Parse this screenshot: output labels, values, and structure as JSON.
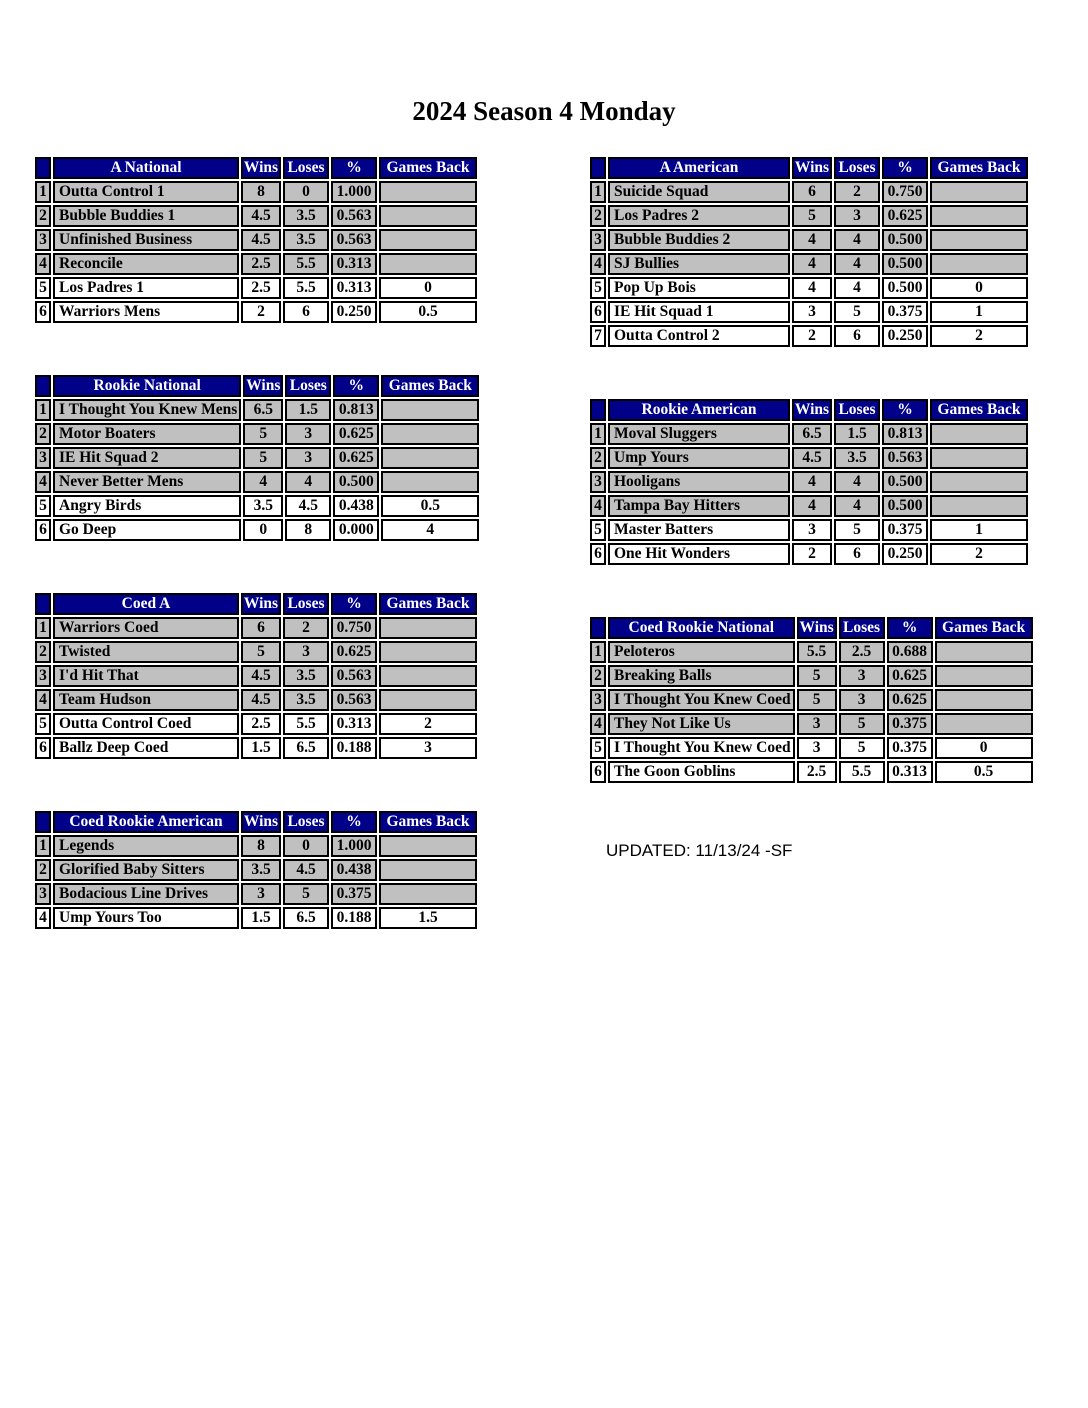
{
  "page": {
    "title": "2024 Season 4 Monday",
    "updated_note": "UPDATED: 11/13/24 -SF"
  },
  "colors": {
    "header_bg": "#000089",
    "header_text": "#ffffff",
    "shaded_row": "#c0c0c0",
    "unshaded_row": "#ffffff",
    "border": "#000000"
  },
  "stat_headers": [
    "Wins",
    "Loses",
    "%",
    "Games Back"
  ],
  "tables": [
    {
      "division": "A National",
      "column": "left",
      "rows": [
        {
          "rank": "1",
          "team": "Outta Control 1",
          "wins": "8",
          "loses": "0",
          "pct": "1.000",
          "games_back": "",
          "shaded": true
        },
        {
          "rank": "2",
          "team": "Bubble Buddies 1",
          "wins": "4.5",
          "loses": "3.5",
          "pct": "0.563",
          "games_back": "",
          "shaded": true
        },
        {
          "rank": "3",
          "team": "Unfinished Business",
          "wins": "4.5",
          "loses": "3.5",
          "pct": "0.563",
          "games_back": "",
          "shaded": true
        },
        {
          "rank": "4",
          "team": "Reconcile",
          "wins": "2.5",
          "loses": "5.5",
          "pct": "0.313",
          "games_back": "",
          "shaded": true
        },
        {
          "rank": "5",
          "team": "Los Padres 1",
          "wins": "2.5",
          "loses": "5.5",
          "pct": "0.313",
          "games_back": "0",
          "shaded": false
        },
        {
          "rank": "6",
          "team": "Warriors Mens",
          "wins": "2",
          "loses": "6",
          "pct": "0.250",
          "games_back": "0.5",
          "shaded": false
        }
      ]
    },
    {
      "division": "A American",
      "column": "right",
      "rows": [
        {
          "rank": "1",
          "team": "Suicide Squad",
          "wins": "6",
          "loses": "2",
          "pct": "0.750",
          "games_back": "",
          "shaded": true
        },
        {
          "rank": "2",
          "team": "Los Padres 2",
          "wins": "5",
          "loses": "3",
          "pct": "0.625",
          "games_back": "",
          "shaded": true
        },
        {
          "rank": "3",
          "team": "Bubble Buddies 2",
          "wins": "4",
          "loses": "4",
          "pct": "0.500",
          "games_back": "",
          "shaded": true
        },
        {
          "rank": "4",
          "team": "SJ Bullies",
          "wins": "4",
          "loses": "4",
          "pct": "0.500",
          "games_back": "",
          "shaded": true
        },
        {
          "rank": "5",
          "team": "Pop Up Bois",
          "wins": "4",
          "loses": "4",
          "pct": "0.500",
          "games_back": "0",
          "shaded": false
        },
        {
          "rank": "6",
          "team": "IE Hit Squad 1",
          "wins": "3",
          "loses": "5",
          "pct": "0.375",
          "games_back": "1",
          "shaded": false
        },
        {
          "rank": "7",
          "team": "Outta Control 2",
          "wins": "2",
          "loses": "6",
          "pct": "0.250",
          "games_back": "2",
          "shaded": false
        }
      ]
    },
    {
      "division": "Rookie National",
      "column": "left",
      "rows": [
        {
          "rank": "1",
          "team": "I Thought You Knew Mens",
          "wins": "6.5",
          "loses": "1.5",
          "pct": "0.813",
          "games_back": "",
          "shaded": true
        },
        {
          "rank": "2",
          "team": "Motor Boaters",
          "wins": "5",
          "loses": "3",
          "pct": "0.625",
          "games_back": "",
          "shaded": true
        },
        {
          "rank": "3",
          "team": "IE Hit Squad 2",
          "wins": "5",
          "loses": "3",
          "pct": "0.625",
          "games_back": "",
          "shaded": true
        },
        {
          "rank": "4",
          "team": "Never Better Mens",
          "wins": "4",
          "loses": "4",
          "pct": "0.500",
          "games_back": "",
          "shaded": true
        },
        {
          "rank": "5",
          "team": "Angry Birds",
          "wins": "3.5",
          "loses": "4.5",
          "pct": "0.438",
          "games_back": "0.5",
          "shaded": false
        },
        {
          "rank": "6",
          "team": "Go Deep",
          "wins": "0",
          "loses": "8",
          "pct": "0.000",
          "games_back": "4",
          "shaded": false
        }
      ]
    },
    {
      "division": "Rookie American",
      "column": "right",
      "rows": [
        {
          "rank": "1",
          "team": "Moval Sluggers",
          "wins": "6.5",
          "loses": "1.5",
          "pct": "0.813",
          "games_back": "",
          "shaded": true
        },
        {
          "rank": "2",
          "team": "Ump Yours",
          "wins": "4.5",
          "loses": "3.5",
          "pct": "0.563",
          "games_back": "",
          "shaded": true
        },
        {
          "rank": "3",
          "team": "Hooligans",
          "wins": "4",
          "loses": "4",
          "pct": "0.500",
          "games_back": "",
          "shaded": true
        },
        {
          "rank": "4",
          "team": "Tampa Bay Hitters",
          "wins": "4",
          "loses": "4",
          "pct": "0.500",
          "games_back": "",
          "shaded": true
        },
        {
          "rank": "5",
          "team": "Master Batters",
          "wins": "3",
          "loses": "5",
          "pct": "0.375",
          "games_back": "1",
          "shaded": false
        },
        {
          "rank": "6",
          "team": "One Hit Wonders",
          "wins": "2",
          "loses": "6",
          "pct": "0.250",
          "games_back": "2",
          "shaded": false
        }
      ]
    },
    {
      "division": "Coed A",
      "column": "left",
      "rows": [
        {
          "rank": "1",
          "team": "Warriors Coed",
          "wins": "6",
          "loses": "2",
          "pct": "0.750",
          "games_back": "",
          "shaded": true
        },
        {
          "rank": "2",
          "team": "Twisted",
          "wins": "5",
          "loses": "3",
          "pct": "0.625",
          "games_back": "",
          "shaded": true
        },
        {
          "rank": "3",
          "team": "I'd Hit That",
          "wins": "4.5",
          "loses": "3.5",
          "pct": "0.563",
          "games_back": "",
          "shaded": true
        },
        {
          "rank": "4",
          "team": "Team Hudson",
          "wins": "4.5",
          "loses": "3.5",
          "pct": "0.563",
          "games_back": "",
          "shaded": true
        },
        {
          "rank": "5",
          "team": "Outta Control Coed",
          "wins": "2.5",
          "loses": "5.5",
          "pct": "0.313",
          "games_back": "2",
          "shaded": false
        },
        {
          "rank": "6",
          "team": "Ballz Deep Coed",
          "wins": "1.5",
          "loses": "6.5",
          "pct": "0.188",
          "games_back": "3",
          "shaded": false
        }
      ]
    },
    {
      "division": "Coed Rookie National",
      "column": "right",
      "rows": [
        {
          "rank": "1",
          "team": "Peloteros",
          "wins": "5.5",
          "loses": "2.5",
          "pct": "0.688",
          "games_back": "",
          "shaded": true
        },
        {
          "rank": "2",
          "team": "Breaking Balls",
          "wins": "5",
          "loses": "3",
          "pct": "0.625",
          "games_back": "",
          "shaded": true
        },
        {
          "rank": "3",
          "team": "I Thought You Knew Coed",
          "wins": "5",
          "loses": "3",
          "pct": "0.625",
          "games_back": "",
          "shaded": true
        },
        {
          "rank": "4",
          "team": "They Not Like Us",
          "wins": "3",
          "loses": "5",
          "pct": "0.375",
          "games_back": "",
          "shaded": true
        },
        {
          "rank": "5",
          "team": "I Thought You Knew Coed",
          "wins": "3",
          "loses": "5",
          "pct": "0.375",
          "games_back": "0",
          "shaded": false
        },
        {
          "rank": "6",
          "team": "The Goon Goblins",
          "wins": "2.5",
          "loses": "5.5",
          "pct": "0.313",
          "games_back": "0.5",
          "shaded": false
        }
      ]
    },
    {
      "division": "Coed Rookie American",
      "column": "left",
      "rows": [
        {
          "rank": "1",
          "team": "Legends",
          "wins": "8",
          "loses": "0",
          "pct": "1.000",
          "games_back": "",
          "shaded": true
        },
        {
          "rank": "2",
          "team": "Glorified Baby Sitters",
          "wins": "3.5",
          "loses": "4.5",
          "pct": "0.438",
          "games_back": "",
          "shaded": true
        },
        {
          "rank": "3",
          "team": "Bodacious Line Drives",
          "wins": "3",
          "loses": "5",
          "pct": "0.375",
          "games_back": "",
          "shaded": true
        },
        {
          "rank": "4",
          "team": "Ump Yours Too",
          "wins": "1.5",
          "loses": "6.5",
          "pct": "0.188",
          "games_back": "1.5",
          "shaded": false
        }
      ]
    }
  ]
}
